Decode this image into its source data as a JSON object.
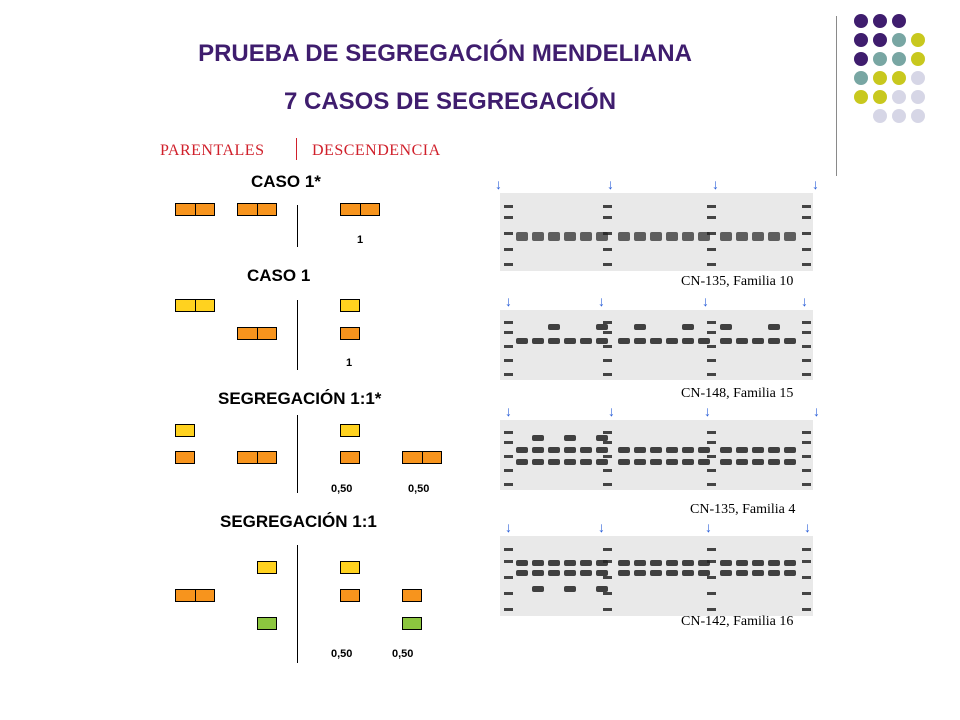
{
  "title": "PRUEBA DE SEGREGACIÓN MENDELIANA",
  "subtitle": "7 CASOS DE SEGREGACIÓN",
  "header": {
    "parentales": "PARENTALES",
    "descendencia": "DESCENDENCIA"
  },
  "cases": [
    {
      "title": "CASO 1*",
      "ratios": [
        "1"
      ]
    },
    {
      "title": "CASO 1",
      "ratios": [
        "1"
      ]
    },
    {
      "title": "SEGREGACIÓN  1:1*",
      "ratios": [
        "0,50",
        "0,50"
      ]
    },
    {
      "title": "SEGREGACIÓN  1:1",
      "ratios": [
        "0,50",
        "0,50"
      ]
    }
  ],
  "gels": [
    {
      "caption": "CN-135, Familia 10"
    },
    {
      "caption": "CN-148,  Familia 15"
    },
    {
      "caption": "CN-135, Familia 4"
    },
    {
      "caption": "CN-142, Familia  16"
    }
  ],
  "arrow_glyph": "↓",
  "colors": {
    "title": "#3f1d6e",
    "header": "#d0202b",
    "orange": "#f7941d",
    "yellow": "#ffd21f",
    "green": "#8cc63f",
    "arrow": "#2b5fd9"
  }
}
